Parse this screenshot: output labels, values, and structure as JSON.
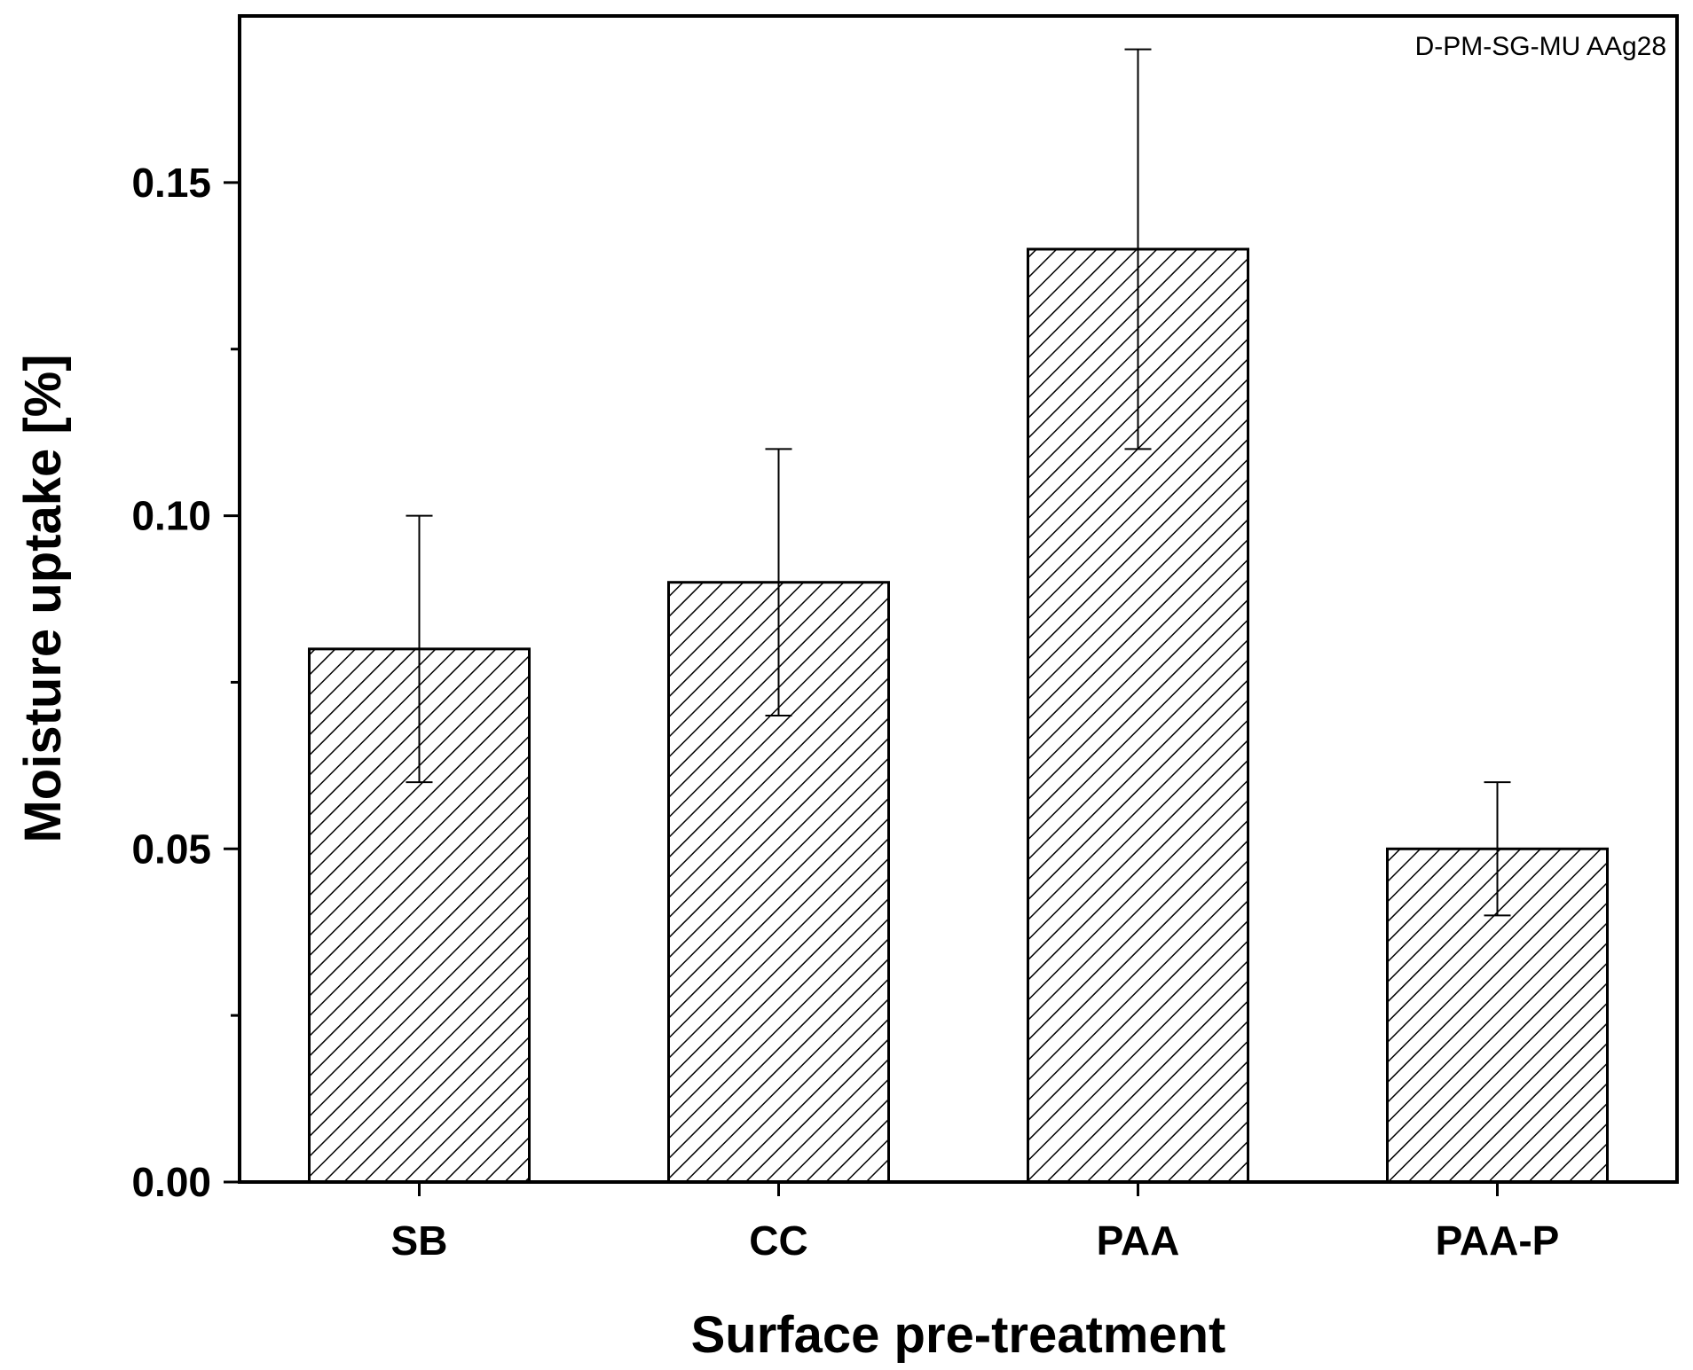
{
  "chart_data": {
    "type": "bar",
    "title": "",
    "annotation": "D-PM-SG-MU AAg28",
    "xlabel": "Surface pre-treatment",
    "ylabel": "Moisture uptake [%]",
    "categories": [
      "SB",
      "CC",
      "PAA",
      "PAA-P"
    ],
    "values": [
      0.08,
      0.09,
      0.14,
      0.05
    ],
    "error_low": [
      0.06,
      0.07,
      0.11,
      0.04
    ],
    "error_high": [
      0.1,
      0.11,
      0.17,
      0.06
    ],
    "ylim": [
      0,
      0.175
    ],
    "yticks_major": [
      "0.00",
      "0.05",
      "0.10",
      "0.15"
    ],
    "yticks_minor": [
      0.025,
      0.075,
      0.125
    ],
    "bar_fill": "hatched",
    "grid": false,
    "colors": {
      "bar_edge": "#000000",
      "hatch": "#000000",
      "background": "#ffffff"
    }
  }
}
